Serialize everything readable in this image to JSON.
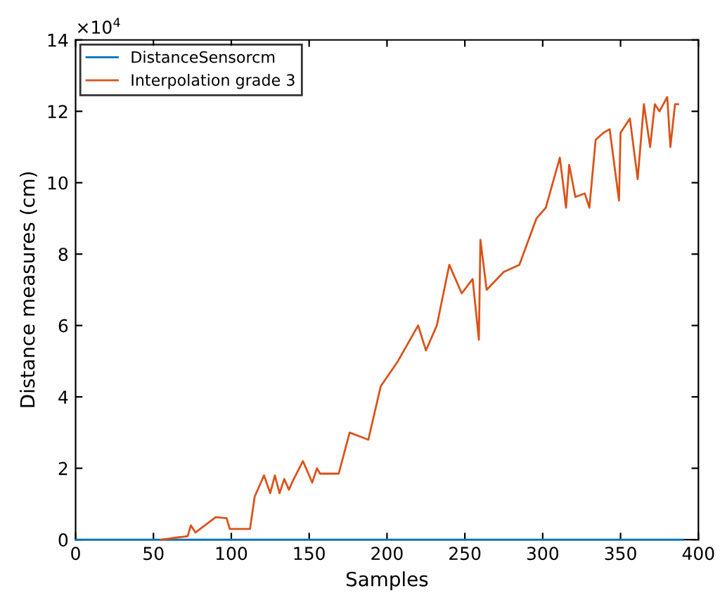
{
  "chart_data": {
    "type": "line",
    "xlabel": "Samples",
    "ylabel": "Distance measures (cm)",
    "annotations": [
      "×10$^{4}$"
    ],
    "xlim": [
      0,
      400
    ],
    "xticks": [
      0,
      50,
      100,
      150,
      200,
      250,
      300,
      350,
      400
    ],
    "ylim": [
      0,
      14
    ],
    "yticks": [
      0,
      2,
      4,
      6,
      8,
      10,
      12,
      14
    ],
    "legend": "top left",
    "grid": false,
    "series": [
      {
        "name": "DistanceSensorcm",
        "color": "#0072bd",
        "x": [
          0,
          100,
          200,
          300,
          390
        ],
        "values": [
          0,
          0,
          0,
          0,
          0
        ]
      },
      {
        "name": "Interpolation grade 3",
        "color": "#d95319",
        "x": [
          55,
          72,
          74,
          77,
          90,
          97,
          99,
          112,
          115,
          121,
          125,
          128,
          131,
          134,
          137,
          139,
          146,
          152,
          155,
          157,
          169,
          176,
          188,
          196,
          207,
          220,
          225,
          232,
          240,
          248,
          255,
          259,
          260,
          264,
          275,
          285,
          296,
          302,
          311,
          315,
          317,
          321,
          327,
          330,
          334,
          339,
          343,
          349,
          350,
          356,
          361,
          365,
          369,
          372,
          375,
          380,
          382,
          385,
          387
        ],
        "values": [
          0,
          0.1,
          0.4,
          0.2,
          0.63,
          0.6,
          0.3,
          0.3,
          1.2,
          1.8,
          1.3,
          1.8,
          1.3,
          1.7,
          1.4,
          1.6,
          2.2,
          1.6,
          2.0,
          1.85,
          1.85,
          3.0,
          2.8,
          4.3,
          5.0,
          6.0,
          5.3,
          6.0,
          7.7,
          6.9,
          7.3,
          5.6,
          8.4,
          7.0,
          7.5,
          7.7,
          9.0,
          9.3,
          10.7,
          9.3,
          10.5,
          9.6,
          9.7,
          9.3,
          11.2,
          11.4,
          11.5,
          9.5,
          11.4,
          11.8,
          10.1,
          12.2,
          11.0,
          12.2,
          12.0,
          12.4,
          11.0,
          12.2,
          12.2
        ]
      }
    ]
  }
}
